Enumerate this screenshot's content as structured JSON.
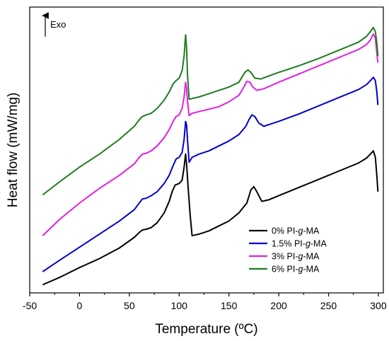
{
  "chart_data": {
    "type": "line",
    "xlabel": "Temperature (ºC)",
    "ylabel": "Heat flow (mW/mg)",
    "xlim": [
      -50,
      305
    ],
    "xticks": [
      -50,
      0,
      50,
      100,
      150,
      200,
      250,
      300
    ],
    "yticks_shown": false,
    "grid": false,
    "legend_position": "bottom-right",
    "annotation": {
      "text": "Exo",
      "arrow": "up"
    },
    "y_units": "relative (stacked curves, offset for clarity)",
    "series": [
      {
        "name": "0% PI-g-MA",
        "label_parts": [
          "0% PI-",
          "g",
          "-MA"
        ],
        "color": "#000000",
        "points": [
          [
            -37,
            0
          ],
          [
            -20,
            4.5
          ],
          [
            0,
            10.5
          ],
          [
            20,
            16
          ],
          [
            40,
            22.5
          ],
          [
            55,
            29
          ],
          [
            60,
            32
          ],
          [
            63,
            33.5
          ],
          [
            67,
            34
          ],
          [
            72,
            35
          ],
          [
            78,
            38
          ],
          [
            85,
            44
          ],
          [
            90,
            51
          ],
          [
            93,
            57
          ],
          [
            96,
            61
          ],
          [
            100,
            62
          ],
          [
            103,
            64
          ],
          [
            105,
            72
          ],
          [
            106.5,
            80
          ],
          [
            107.5,
            74
          ],
          [
            109,
            60
          ],
          [
            111,
            43
          ],
          [
            113,
            30
          ],
          [
            120,
            31
          ],
          [
            130,
            33
          ],
          [
            140,
            36
          ],
          [
            150,
            39
          ],
          [
            160,
            44
          ],
          [
            168,
            50
          ],
          [
            172,
            58
          ],
          [
            175,
            60
          ],
          [
            178,
            57
          ],
          [
            183,
            51
          ],
          [
            190,
            52
          ],
          [
            200,
            54.5
          ],
          [
            220,
            59.5
          ],
          [
            240,
            64.5
          ],
          [
            260,
            69.5
          ],
          [
            280,
            74.5
          ],
          [
            288,
            77.5
          ],
          [
            292,
            80
          ],
          [
            295,
            82
          ],
          [
            297,
            78
          ],
          [
            298.5,
            67
          ],
          [
            299.5,
            57
          ]
        ]
      },
      {
        "name": "1.5% PI-g-MA",
        "label_parts": [
          "1.5% PI-",
          "g",
          "-MA"
        ],
        "color": "#0000cc",
        "points": [
          [
            -37,
            8
          ],
          [
            -20,
            15
          ],
          [
            0,
            23
          ],
          [
            20,
            31
          ],
          [
            40,
            39
          ],
          [
            55,
            46
          ],
          [
            60,
            50
          ],
          [
            63,
            52.5
          ],
          [
            67,
            53
          ],
          [
            72,
            54.5
          ],
          [
            78,
            57
          ],
          [
            85,
            62
          ],
          [
            90,
            67
          ],
          [
            94,
            73
          ],
          [
            97,
            77
          ],
          [
            100,
            78
          ],
          [
            103,
            81
          ],
          [
            105,
            89
          ],
          [
            106.5,
            100
          ],
          [
            107.5,
            98
          ],
          [
            108.5,
            88
          ],
          [
            110,
            75
          ],
          [
            113,
            78
          ],
          [
            120,
            80
          ],
          [
            130,
            82
          ],
          [
            140,
            85
          ],
          [
            150,
            88
          ],
          [
            160,
            92
          ],
          [
            167,
            97
          ],
          [
            170,
            101
          ],
          [
            173,
            104
          ],
          [
            176,
            103
          ],
          [
            180,
            99
          ],
          [
            185,
            97
          ],
          [
            200,
            100
          ],
          [
            220,
            104.5
          ],
          [
            240,
            109.5
          ],
          [
            260,
            114.5
          ],
          [
            280,
            119.5
          ],
          [
            288,
            122.5
          ],
          [
            292,
            125
          ],
          [
            295,
            127
          ],
          [
            297,
            125
          ],
          [
            298.5,
            118
          ],
          [
            299.5,
            110
          ]
        ]
      },
      {
        "name": "3% PI-g-MA",
        "label_parts": [
          "3% PI-",
          "g",
          "-MA"
        ],
        "color": "#e020e0",
        "points": [
          [
            -37,
            30
          ],
          [
            -20,
            40
          ],
          [
            0,
            50
          ],
          [
            20,
            59
          ],
          [
            40,
            67
          ],
          [
            55,
            74
          ],
          [
            60,
            78
          ],
          [
            63,
            80
          ],
          [
            67,
            80.5
          ],
          [
            72,
            82
          ],
          [
            78,
            85
          ],
          [
            85,
            90
          ],
          [
            90,
            95
          ],
          [
            94,
            100
          ],
          [
            97,
            103
          ],
          [
            100,
            104
          ],
          [
            103,
            108
          ],
          [
            105,
            115
          ],
          [
            106.5,
            124
          ],
          [
            107.5,
            120
          ],
          [
            108.5,
            112
          ],
          [
            110,
            103.5
          ],
          [
            113,
            105
          ],
          [
            120,
            106
          ],
          [
            130,
            107.5
          ],
          [
            140,
            109
          ],
          [
            150,
            112
          ],
          [
            160,
            116
          ],
          [
            165,
            121
          ],
          [
            168,
            124.5
          ],
          [
            171,
            124
          ],
          [
            174,
            121
          ],
          [
            178,
            119
          ],
          [
            185,
            120
          ],
          [
            200,
            124
          ],
          [
            220,
            129
          ],
          [
            240,
            134
          ],
          [
            260,
            139
          ],
          [
            280,
            144
          ],
          [
            288,
            147
          ],
          [
            292,
            150
          ],
          [
            295,
            153.5
          ],
          [
            297,
            151
          ],
          [
            298.5,
            142
          ],
          [
            299.5,
            136
          ]
        ]
      },
      {
        "name": "6% PI-g-MA",
        "label_parts": [
          "6% PI-",
          "g",
          "-MA"
        ],
        "color": "#1e7c1e",
        "points": [
          [
            -37,
            55
          ],
          [
            -20,
            63
          ],
          [
            0,
            72
          ],
          [
            20,
            80
          ],
          [
            40,
            89
          ],
          [
            55,
            97
          ],
          [
            60,
            101
          ],
          [
            63,
            103
          ],
          [
            67,
            104
          ],
          [
            72,
            105
          ],
          [
            78,
            108
          ],
          [
            85,
            113
          ],
          [
            90,
            118
          ],
          [
            94,
            123
          ],
          [
            97,
            125
          ],
          [
            100,
            126.5
          ],
          [
            103,
            131
          ],
          [
            105,
            140
          ],
          [
            106.5,
            153
          ],
          [
            107.5,
            145
          ],
          [
            108.5,
            128
          ],
          [
            110,
            113.5
          ],
          [
            113,
            114
          ],
          [
            120,
            115
          ],
          [
            130,
            117
          ],
          [
            140,
            119
          ],
          [
            150,
            121
          ],
          [
            160,
            124
          ],
          [
            166,
            130
          ],
          [
            169,
            131.5
          ],
          [
            172,
            130
          ],
          [
            176,
            126.5
          ],
          [
            182,
            126
          ],
          [
            200,
            130
          ],
          [
            220,
            134
          ],
          [
            240,
            138.5
          ],
          [
            260,
            143.5
          ],
          [
            280,
            148.5
          ],
          [
            288,
            152
          ],
          [
            292,
            155
          ],
          [
            295,
            157.5
          ],
          [
            297,
            155
          ],
          [
            298.5,
            148
          ],
          [
            299.5,
            140
          ]
        ]
      }
    ]
  }
}
